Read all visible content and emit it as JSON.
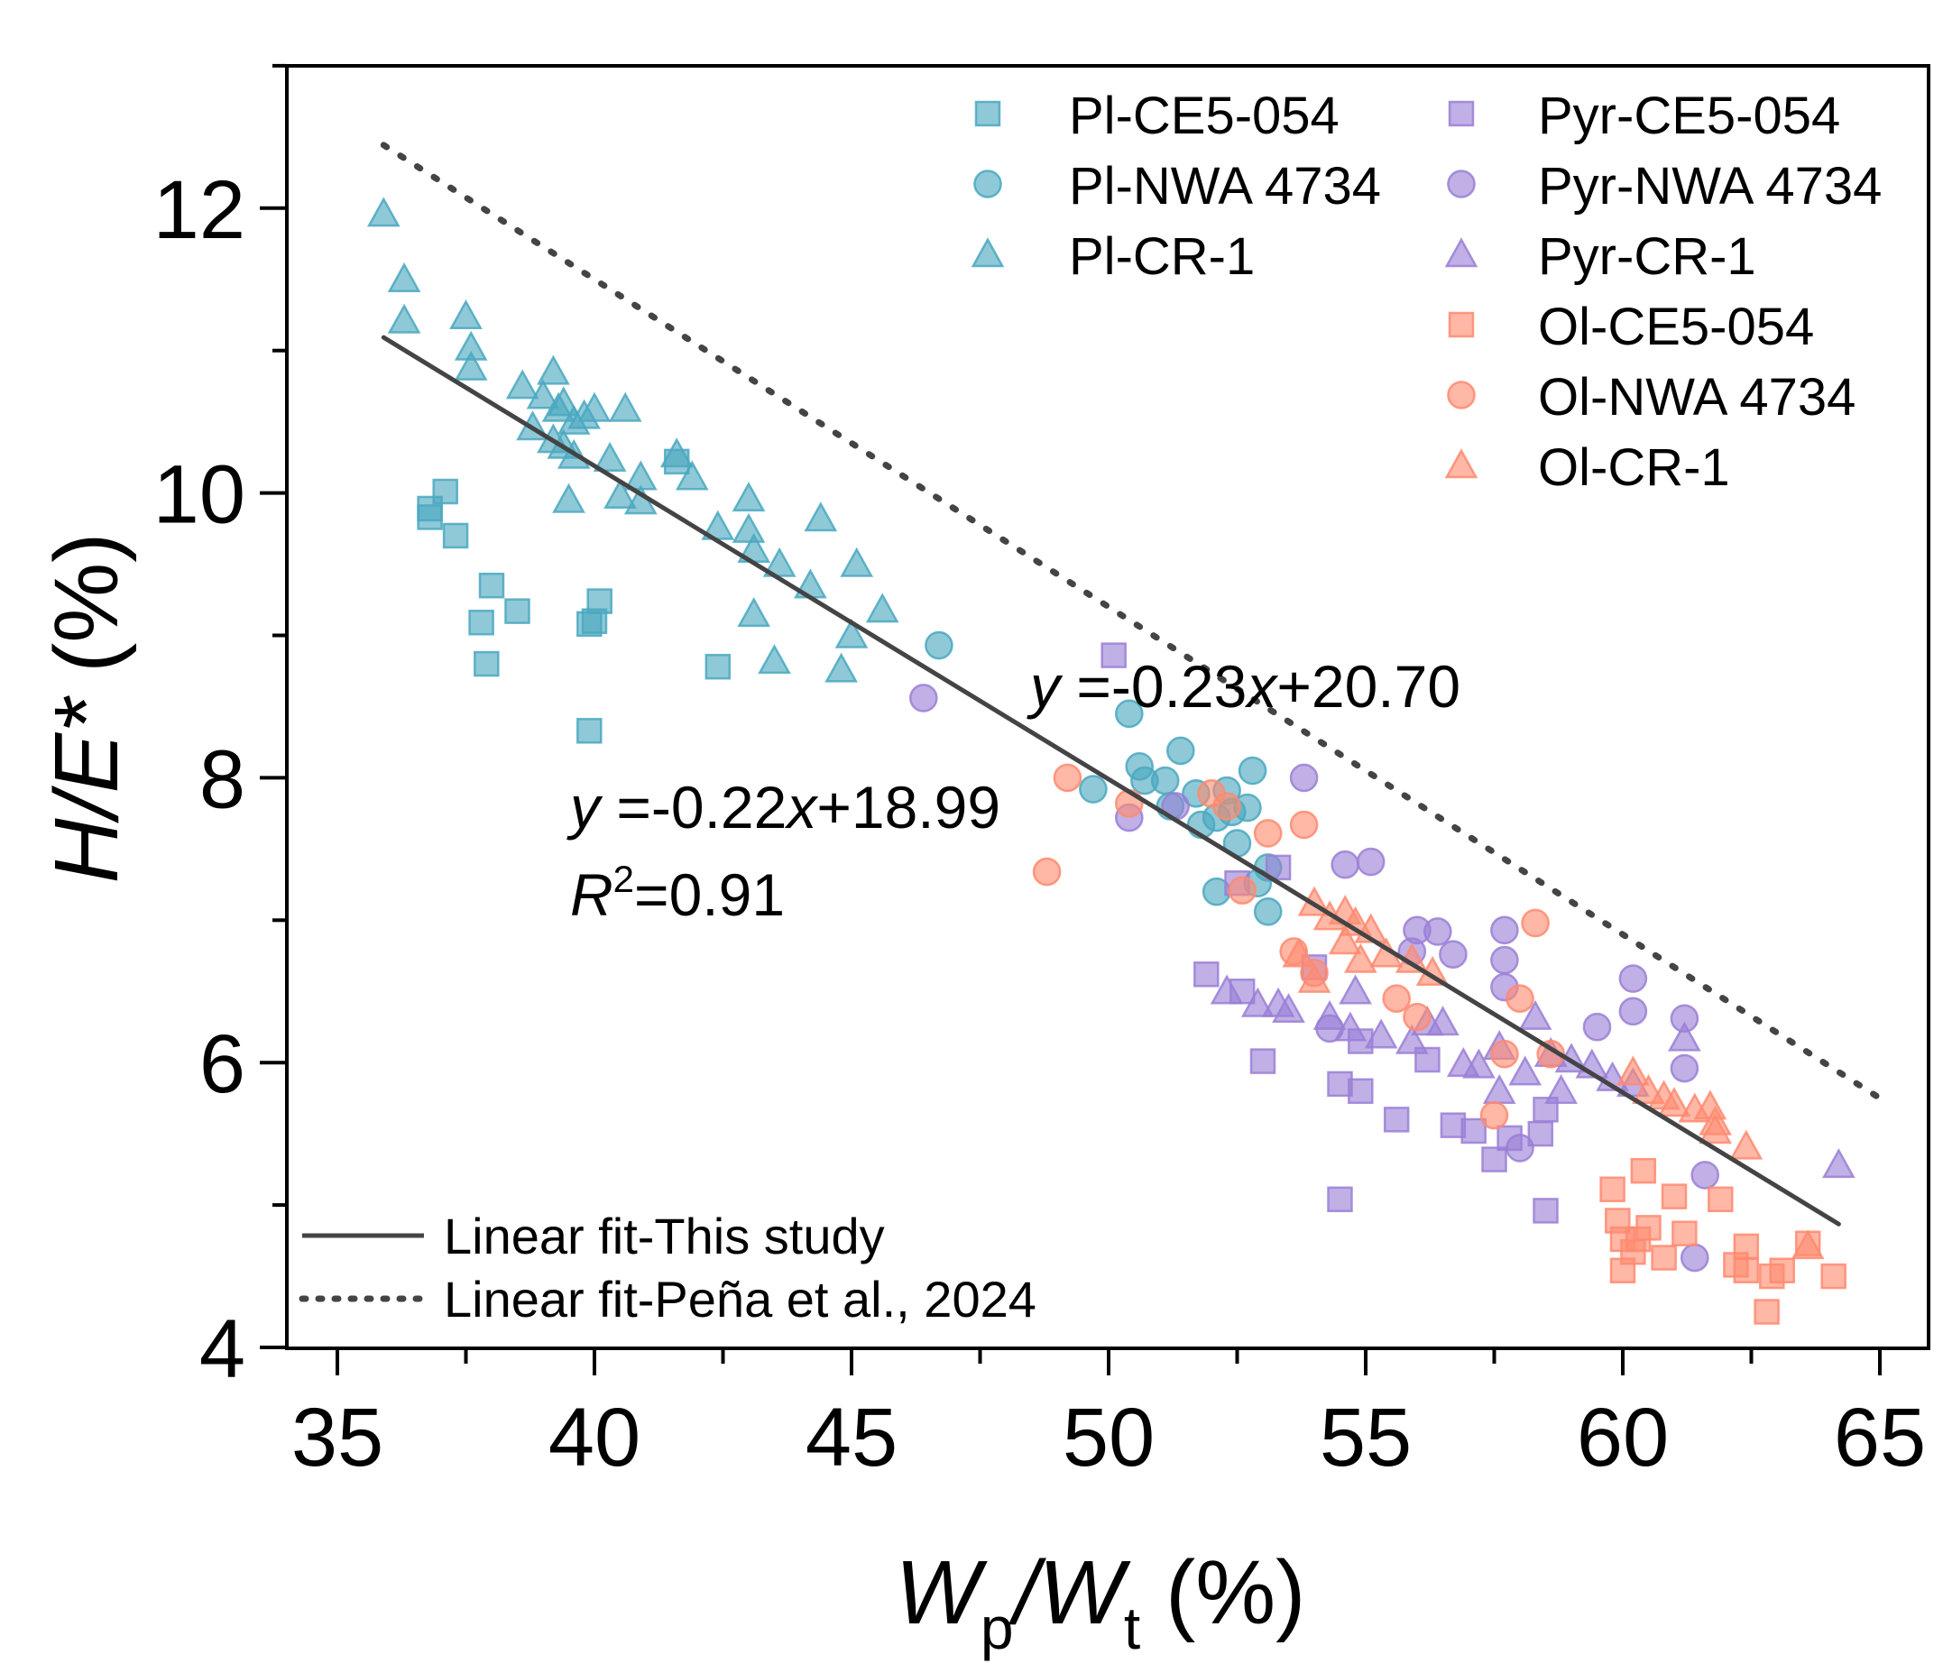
{
  "chart_data": {
    "type": "scatter",
    "title": "",
    "xlabel": {
      "main": "W",
      "sub1": "p",
      "slash": "/W",
      "sub2": "t",
      "unit": " (%)"
    },
    "ylabel": {
      "main": "H/E*",
      "unit": " (%)"
    },
    "xlim": [
      34,
      65.5
    ],
    "ylim": [
      4,
      13
    ],
    "x_ticks": [
      35,
      40,
      45,
      50,
      55,
      60,
      65
    ],
    "x_tick_labels": [
      "35",
      "40",
      "45",
      "50",
      "55",
      "60",
      "65"
    ],
    "y_ticks": [
      4,
      6,
      8,
      10,
      12
    ],
    "y_tick_labels": [
      "4",
      "6",
      "8",
      "10",
      "12"
    ],
    "grid": false,
    "legend_placement": "top-right",
    "series": [
      {
        "name": "Pl-CE5-054",
        "marker": "square",
        "color": "#4aa8c0",
        "points": [
          [
            37.1,
            10.01
          ],
          [
            36.8,
            9.89
          ],
          [
            36.8,
            9.83
          ],
          [
            37.3,
            9.7
          ],
          [
            38.0,
            9.35
          ],
          [
            37.8,
            9.09
          ],
          [
            38.5,
            9.17
          ],
          [
            37.9,
            8.8
          ],
          [
            40.0,
            9.1
          ],
          [
            40.1,
            9.24
          ],
          [
            39.9,
            9.08
          ],
          [
            39.9,
            8.33
          ],
          [
            42.4,
            8.78
          ],
          [
            41.6,
            10.22
          ]
        ]
      },
      {
        "name": "Pl-NWA 4734",
        "marker": "circle",
        "color": "#4aa8c0",
        "points": [
          [
            46.7,
            8.93
          ],
          [
            49.7,
            7.92
          ],
          [
            50.4,
            8.45
          ],
          [
            50.6,
            8.08
          ],
          [
            50.7,
            7.98
          ],
          [
            51.4,
            8.19
          ],
          [
            51.1,
            7.98
          ],
          [
            51.2,
            7.8
          ],
          [
            52.3,
            7.91
          ],
          [
            52.1,
            7.72
          ],
          [
            52.4,
            7.76
          ],
          [
            52.8,
            8.05
          ],
          [
            52.5,
            7.54
          ],
          [
            52.7,
            7.79
          ],
          [
            52.1,
            7.2
          ],
          [
            53.1,
            7.37
          ],
          [
            52.9,
            7.26
          ],
          [
            53.1,
            7.06
          ],
          [
            51.8,
            7.67
          ],
          [
            51.7,
            7.89
          ]
        ]
      },
      {
        "name": "Pl-CR-1",
        "marker": "triangle",
        "color": "#4aa8c0",
        "points": [
          [
            35.9,
            11.96
          ],
          [
            36.3,
            11.5
          ],
          [
            36.3,
            11.21
          ],
          [
            37.5,
            11.24
          ],
          [
            37.6,
            11.02
          ],
          [
            37.6,
            10.88
          ],
          [
            38.6,
            10.75
          ],
          [
            39.2,
            10.85
          ],
          [
            39.0,
            10.68
          ],
          [
            39.3,
            10.59
          ],
          [
            39.4,
            10.63
          ],
          [
            39.6,
            10.5
          ],
          [
            39.8,
            10.54
          ],
          [
            40.0,
            10.59
          ],
          [
            40.6,
            10.59
          ],
          [
            38.8,
            10.46
          ],
          [
            39.2,
            10.37
          ],
          [
            39.4,
            10.33
          ],
          [
            39.6,
            10.26
          ],
          [
            40.3,
            10.24
          ],
          [
            39.5,
            9.95
          ],
          [
            40.9,
            10.11
          ],
          [
            40.5,
            9.98
          ],
          [
            40.9,
            9.94
          ],
          [
            41.6,
            10.27
          ],
          [
            41.9,
            10.11
          ],
          [
            42.4,
            9.76
          ],
          [
            43.0,
            9.96
          ],
          [
            43.0,
            9.74
          ],
          [
            43.1,
            9.6
          ],
          [
            43.6,
            9.5
          ],
          [
            43.1,
            9.15
          ],
          [
            44.2,
            9.35
          ],
          [
            44.4,
            9.82
          ],
          [
            45.1,
            9.5
          ],
          [
            45.0,
            9.0
          ],
          [
            44.8,
            8.76
          ],
          [
            45.6,
            9.18
          ],
          [
            43.5,
            8.82
          ]
        ]
      },
      {
        "name": "Pyr-CE5-054",
        "marker": "square",
        "color": "#9a7fd6",
        "points": [
          [
            50.1,
            8.86
          ],
          [
            51.9,
            6.62
          ],
          [
            52.6,
            6.5
          ],
          [
            53.0,
            6.01
          ],
          [
            54.0,
            6.67
          ],
          [
            54.5,
            5.04
          ],
          [
            54.5,
            5.85
          ],
          [
            54.9,
            5.8
          ],
          [
            55.6,
            5.6
          ],
          [
            56.7,
            5.56
          ],
          [
            57.1,
            5.52
          ],
          [
            57.5,
            5.32
          ],
          [
            58.5,
            4.96
          ],
          [
            58.4,
            5.5
          ],
          [
            58.5,
            5.67
          ],
          [
            57.8,
            5.47
          ],
          [
            52.5,
            7.26
          ],
          [
            53.3,
            7.37
          ],
          [
            54.9,
            6.15
          ],
          [
            56.2,
            6.02
          ]
        ]
      },
      {
        "name": "Pyr-NWA 4734",
        "marker": "circle",
        "color": "#9a7fd6",
        "points": [
          [
            46.4,
            8.56
          ],
          [
            53.8,
            8.0
          ],
          [
            54.6,
            7.39
          ],
          [
            55.1,
            7.41
          ],
          [
            56.0,
            6.93
          ],
          [
            56.4,
            6.92
          ],
          [
            56.7,
            6.76
          ],
          [
            57.7,
            6.93
          ],
          [
            57.7,
            6.72
          ],
          [
            57.7,
            6.53
          ],
          [
            60.2,
            6.59
          ],
          [
            60.2,
            6.36
          ],
          [
            61.2,
            6.31
          ],
          [
            61.2,
            5.96
          ],
          [
            61.6,
            5.21
          ],
          [
            61.4,
            4.63
          ],
          [
            58.0,
            5.4
          ],
          [
            55.9,
            6.78
          ],
          [
            59.5,
            6.25
          ],
          [
            51.3,
            7.8
          ],
          [
            50.4,
            7.72
          ],
          [
            54.3,
            6.24
          ]
        ]
      },
      {
        "name": "Pyr-CR-1",
        "marker": "triangle",
        "color": "#9a7fd6",
        "points": [
          [
            52.3,
            6.5
          ],
          [
            52.9,
            6.41
          ],
          [
            53.3,
            6.41
          ],
          [
            53.5,
            6.37
          ],
          [
            54.3,
            6.32
          ],
          [
            54.7,
            6.24
          ],
          [
            55.3,
            6.19
          ],
          [
            56.2,
            6.28
          ],
          [
            56.5,
            6.28
          ],
          [
            56.9,
            5.99
          ],
          [
            57.2,
            5.98
          ],
          [
            57.6,
            5.8
          ],
          [
            58.1,
            5.93
          ],
          [
            58.6,
            6.06
          ],
          [
            59.0,
            6.02
          ],
          [
            59.4,
            5.98
          ],
          [
            59.8,
            5.89
          ],
          [
            60.2,
            5.85
          ],
          [
            61.2,
            6.17
          ],
          [
            64.2,
            5.28
          ],
          [
            57.6,
            6.11
          ],
          [
            58.3,
            6.32
          ],
          [
            54.8,
            6.5
          ],
          [
            55.9,
            6.15
          ],
          [
            58.8,
            5.8
          ]
        ]
      },
      {
        "name": "Ol-CE5-054",
        "marker": "square",
        "color": "#ff8a70",
        "points": [
          [
            59.8,
            5.11
          ],
          [
            59.9,
            4.89
          ],
          [
            60.0,
            4.76
          ],
          [
            60.2,
            4.67
          ],
          [
            60.3,
            4.76
          ],
          [
            60.4,
            5.24
          ],
          [
            60.5,
            4.84
          ],
          [
            61.0,
            5.06
          ],
          [
            60.8,
            4.63
          ],
          [
            60.0,
            4.54
          ],
          [
            61.2,
            4.8
          ],
          [
            61.9,
            5.04
          ],
          [
            62.2,
            4.58
          ],
          [
            62.4,
            4.71
          ],
          [
            62.4,
            4.54
          ],
          [
            62.9,
            4.5
          ],
          [
            62.8,
            4.25
          ],
          [
            63.1,
            4.54
          ],
          [
            63.6,
            4.73
          ],
          [
            64.1,
            4.5
          ]
        ]
      },
      {
        "name": "Ol-NWA 4734",
        "marker": "circle",
        "color": "#ff8a70",
        "points": [
          [
            48.8,
            7.34
          ],
          [
            49.2,
            8.0
          ],
          [
            50.4,
            7.82
          ],
          [
            52.0,
            7.89
          ],
          [
            52.3,
            7.8
          ],
          [
            53.1,
            7.61
          ],
          [
            52.6,
            7.21
          ],
          [
            53.8,
            7.67
          ],
          [
            53.6,
            6.78
          ],
          [
            54.0,
            6.63
          ],
          [
            55.6,
            6.45
          ],
          [
            56.0,
            6.32
          ],
          [
            57.7,
            6.06
          ],
          [
            58.0,
            6.45
          ],
          [
            58.3,
            6.98
          ],
          [
            57.5,
            5.63
          ],
          [
            58.6,
            6.06
          ]
        ]
      },
      {
        "name": "Ol-CR-1",
        "marker": "triangle",
        "color": "#ff8a70",
        "points": [
          [
            54.0,
            7.12
          ],
          [
            54.3,
            7.02
          ],
          [
            54.6,
            7.06
          ],
          [
            54.8,
            6.98
          ],
          [
            55.1,
            6.93
          ],
          [
            54.6,
            6.85
          ],
          [
            54.9,
            6.72
          ],
          [
            55.4,
            6.76
          ],
          [
            55.9,
            6.72
          ],
          [
            56.3,
            6.63
          ],
          [
            53.7,
            6.76
          ],
          [
            60.2,
            5.93
          ],
          [
            60.5,
            5.8
          ],
          [
            60.8,
            5.76
          ],
          [
            61.0,
            5.71
          ],
          [
            61.4,
            5.67
          ],
          [
            61.7,
            5.69
          ],
          [
            61.8,
            5.58
          ],
          [
            62.4,
            5.41
          ],
          [
            61.8,
            5.52
          ],
          [
            63.6,
            4.71
          ],
          [
            54.0,
            6.58
          ]
        ]
      }
    ],
    "fits": [
      {
        "name": "Linear fit-This study",
        "style": "solid",
        "color": "#444444",
        "slope": -0.22,
        "intercept": 18.99,
        "x_range": [
          35.9,
          64.2
        ],
        "equation_label": "=-0.22",
        "equation_x": "x",
        "equation_tail": "+18.99",
        "r2_label": "=0.91"
      },
      {
        "name": "Linear fit-Peña et al., 2024",
        "style": "dotted",
        "color": "#444444",
        "slope": -0.23,
        "intercept": 20.7,
        "x_range": [
          35.9,
          65.0
        ],
        "equation_label": "=-0.23",
        "equation_x": "x",
        "equation_tail": "+20.70"
      }
    ],
    "annotations": {
      "eq_this_study": "y =-0.22x+18.99",
      "r2_this_study": "R2=0.91",
      "eq_pena": "y =-0.23x+20.70"
    },
    "legend": {
      "markers_col1": [
        "Pl-CE5-054",
        "Pl-NWA 4734",
        "Pl-CR-1"
      ],
      "markers_col2": [
        "Pyr-CE5-054",
        "Pyr-NWA 4734",
        "Pyr-CR-1",
        "Ol-CE5-054",
        "Ol-NWA 4734",
        "Ol-CR-1"
      ],
      "lines": [
        "Linear fit-This study",
        "Linear fit-Peña et al., 2024"
      ]
    }
  }
}
